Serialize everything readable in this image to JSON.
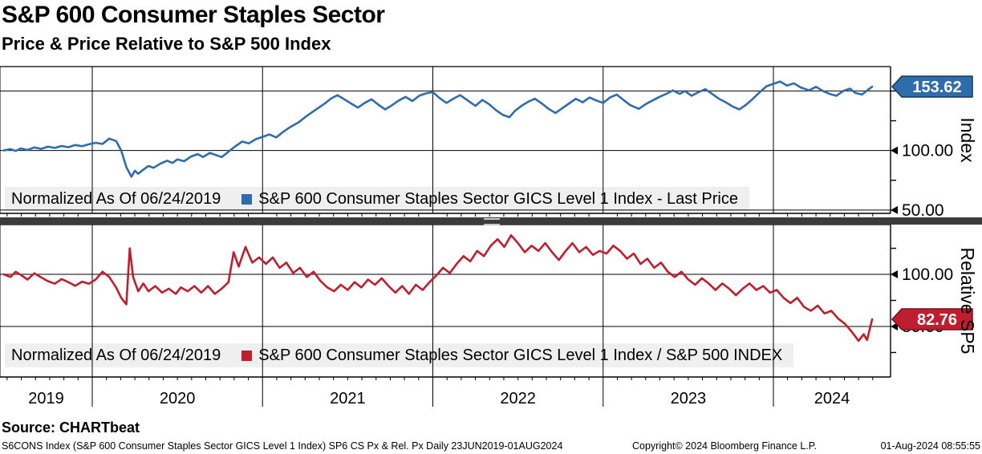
{
  "chart_data": {
    "type": "line",
    "title": "S&P 600 Consumer Staples Sector",
    "subtitle": "Price & Price Relative to S&P 500 Index",
    "normalized_note": "Normalized As Of 06/24/2019",
    "grid": true,
    "legend_position": "bottom-inside-each-panel",
    "x_axis": {
      "tick_labels": [
        "2019",
        "2020",
        "2021",
        "2022",
        "2023",
        "2024"
      ],
      "tick_years": [
        2019,
        2020,
        2021,
        2022,
        2023,
        2024
      ],
      "year_boundaries": [
        2020,
        2021,
        2022,
        2023,
        2024
      ],
      "range": [
        2019.475,
        2024.59
      ],
      "period": "Daily 23JUN2019-01AUG2024"
    },
    "panels": [
      {
        "id": "price",
        "axis_title": "Index",
        "legend_normalized": "Normalized As Of 06/24/2019",
        "legend_series": "S&P 600 Consumer Staples Sector GICS Level 1 Index - Last Price",
        "color": "#2e6cab",
        "tag_border": "#14395e",
        "last_value": 153.62,
        "last_value_label": "153.62",
        "ylim": [
          47.2,
          170.5
        ],
        "gridline_values": [
          150,
          100,
          50
        ],
        "axis_labels": [
          {
            "v": 100,
            "text": "100.00"
          },
          {
            "v": 50,
            "text": "50.00"
          }
        ],
        "minor_ticks": [
          150,
          125,
          75
        ],
        "series": [
          [
            2019.48,
            100
          ],
          [
            2019.52,
            101.2
          ],
          [
            2019.55,
            99.6
          ],
          [
            2019.58,
            101.8
          ],
          [
            2019.62,
            100.4
          ],
          [
            2019.66,
            102.6
          ],
          [
            2019.7,
            101.4
          ],
          [
            2019.74,
            103.2
          ],
          [
            2019.78,
            102.2
          ],
          [
            2019.82,
            103.8
          ],
          [
            2019.86,
            102.8
          ],
          [
            2019.9,
            104.6
          ],
          [
            2019.94,
            103.6
          ],
          [
            2019.98,
            105.2
          ],
          [
            2020.02,
            106.5
          ],
          [
            2020.06,
            105.5
          ],
          [
            2020.1,
            110
          ],
          [
            2020.14,
            108
          ],
          [
            2020.17,
            100
          ],
          [
            2020.2,
            86
          ],
          [
            2020.23,
            78
          ],
          [
            2020.25,
            83
          ],
          [
            2020.27,
            80.5
          ],
          [
            2020.3,
            84
          ],
          [
            2020.33,
            87
          ],
          [
            2020.36,
            85.5
          ],
          [
            2020.4,
            89
          ],
          [
            2020.44,
            91.5
          ],
          [
            2020.47,
            89.5
          ],
          [
            2020.5,
            92.5
          ],
          [
            2020.54,
            91
          ],
          [
            2020.58,
            95
          ],
          [
            2020.62,
            97
          ],
          [
            2020.65,
            94.5
          ],
          [
            2020.69,
            98
          ],
          [
            2020.72,
            96.5
          ],
          [
            2020.76,
            94.5
          ],
          [
            2020.8,
            99
          ],
          [
            2020.84,
            103.5
          ],
          [
            2020.88,
            107.5
          ],
          [
            2020.92,
            106
          ],
          [
            2020.96,
            109.5
          ],
          [
            2021.0,
            111.5
          ],
          [
            2021.04,
            113.5
          ],
          [
            2021.08,
            111
          ],
          [
            2021.12,
            115.5
          ],
          [
            2021.16,
            119.5
          ],
          [
            2021.21,
            123.5
          ],
          [
            2021.25,
            128
          ],
          [
            2021.29,
            132
          ],
          [
            2021.33,
            136
          ],
          [
            2021.37,
            140
          ],
          [
            2021.4,
            143.5
          ],
          [
            2021.44,
            146.5
          ],
          [
            2021.48,
            143
          ],
          [
            2021.52,
            139.5
          ],
          [
            2021.56,
            136
          ],
          [
            2021.6,
            140
          ],
          [
            2021.64,
            143
          ],
          [
            2021.68,
            138.5
          ],
          [
            2021.72,
            134.5
          ],
          [
            2021.76,
            138
          ],
          [
            2021.8,
            142
          ],
          [
            2021.84,
            145
          ],
          [
            2021.88,
            141.5
          ],
          [
            2021.92,
            146
          ],
          [
            2021.96,
            148
          ],
          [
            2022.0,
            149
          ],
          [
            2022.04,
            144
          ],
          [
            2022.08,
            140
          ],
          [
            2022.12,
            143.5
          ],
          [
            2022.16,
            146.5
          ],
          [
            2022.21,
            141.5
          ],
          [
            2022.25,
            137.5
          ],
          [
            2022.29,
            142.5
          ],
          [
            2022.33,
            139
          ],
          [
            2022.37,
            134
          ],
          [
            2022.41,
            130
          ],
          [
            2022.45,
            128
          ],
          [
            2022.48,
            133
          ],
          [
            2022.52,
            137.5
          ],
          [
            2022.56,
            141
          ],
          [
            2022.6,
            143.5
          ],
          [
            2022.64,
            139.5
          ],
          [
            2022.68,
            135
          ],
          [
            2022.72,
            131.5
          ],
          [
            2022.76,
            135.5
          ],
          [
            2022.8,
            139.5
          ],
          [
            2022.84,
            143.5
          ],
          [
            2022.88,
            140.5
          ],
          [
            2022.92,
            144.5
          ],
          [
            2022.96,
            142
          ],
          [
            2023.0,
            140
          ],
          [
            2023.04,
            144.5
          ],
          [
            2023.08,
            147
          ],
          [
            2023.12,
            142.5
          ],
          [
            2023.16,
            138
          ],
          [
            2023.21,
            135
          ],
          [
            2023.25,
            139
          ],
          [
            2023.29,
            142
          ],
          [
            2023.33,
            145
          ],
          [
            2023.37,
            147.5
          ],
          [
            2023.41,
            150.5
          ],
          [
            2023.45,
            147.5
          ],
          [
            2023.48,
            150
          ],
          [
            2023.52,
            146
          ],
          [
            2023.56,
            149
          ],
          [
            2023.6,
            151.5
          ],
          [
            2023.64,
            147.5
          ],
          [
            2023.68,
            143.5
          ],
          [
            2023.72,
            140.5
          ],
          [
            2023.76,
            137
          ],
          [
            2023.8,
            134.5
          ],
          [
            2023.84,
            138.5
          ],
          [
            2023.88,
            143.5
          ],
          [
            2023.92,
            149
          ],
          [
            2023.96,
            154
          ],
          [
            2024.0,
            156
          ],
          [
            2024.04,
            158
          ],
          [
            2024.08,
            154.5
          ],
          [
            2024.12,
            156.5
          ],
          [
            2024.16,
            153
          ],
          [
            2024.21,
            150.5
          ],
          [
            2024.25,
            153.5
          ],
          [
            2024.29,
            150
          ],
          [
            2024.33,
            147.5
          ],
          [
            2024.37,
            146
          ],
          [
            2024.41,
            150
          ],
          [
            2024.45,
            152
          ],
          [
            2024.48,
            148.5
          ],
          [
            2024.52,
            147
          ],
          [
            2024.56,
            151.5
          ],
          [
            2024.58,
            153.62
          ]
        ]
      },
      {
        "id": "relative",
        "axis_title": "Relative SP5",
        "legend_normalized": "Normalized As Of 06/24/2019",
        "legend_series": "S&P 600 Consumer Staples Sector GICS Level 1 Index / S&P 500 INDEX",
        "color": "#be1e2d",
        "tag_border": "#73121f",
        "last_value": 82.76,
        "last_value_label": "82.76",
        "ylim": [
          60.6,
          119.1
        ],
        "gridline_values": [
          100,
          80
        ],
        "axis_labels": [
          {
            "v": 100,
            "text": "100.00"
          },
          {
            "v": 80,
            "text": "80.00"
          }
        ],
        "minor_ticks": [
          110,
          90,
          70
        ],
        "series": [
          [
            2019.48,
            100
          ],
          [
            2019.52,
            99
          ],
          [
            2019.55,
            101
          ],
          [
            2019.58,
            99.8
          ],
          [
            2019.62,
            98
          ],
          [
            2019.66,
            100.4
          ],
          [
            2019.7,
            98.8
          ],
          [
            2019.74,
            97.4
          ],
          [
            2019.78,
            96.4
          ],
          [
            2019.82,
            98.2
          ],
          [
            2019.86,
            97
          ],
          [
            2019.9,
            95.6
          ],
          [
            2019.94,
            97.2
          ],
          [
            2019.98,
            96.4
          ],
          [
            2020.02,
            98
          ],
          [
            2020.06,
            101
          ],
          [
            2020.1,
            99
          ],
          [
            2020.14,
            95
          ],
          [
            2020.17,
            91
          ],
          [
            2020.2,
            88.5
          ],
          [
            2020.22,
            110
          ],
          [
            2020.24,
            99
          ],
          [
            2020.27,
            93.5
          ],
          [
            2020.3,
            96.5
          ],
          [
            2020.33,
            93.5
          ],
          [
            2020.37,
            95.5
          ],
          [
            2020.41,
            93
          ],
          [
            2020.45,
            94.5
          ],
          [
            2020.49,
            92.5
          ],
          [
            2020.52,
            95
          ],
          [
            2020.56,
            93.5
          ],
          [
            2020.6,
            95.5
          ],
          [
            2020.64,
            93
          ],
          [
            2020.68,
            95.5
          ],
          [
            2020.72,
            92.5
          ],
          [
            2020.76,
            94.5
          ],
          [
            2020.8,
            97
          ],
          [
            2020.83,
            108.5
          ],
          [
            2020.86,
            103
          ],
          [
            2020.9,
            110.5
          ],
          [
            2020.94,
            104.5
          ],
          [
            2020.98,
            106.5
          ],
          [
            2021.02,
            104
          ],
          [
            2021.06,
            106.5
          ],
          [
            2021.1,
            102.5
          ],
          [
            2021.14,
            104.5
          ],
          [
            2021.18,
            100.5
          ],
          [
            2021.22,
            102.5
          ],
          [
            2021.26,
            99
          ],
          [
            2021.3,
            101
          ],
          [
            2021.34,
            97.5
          ],
          [
            2021.38,
            95
          ],
          [
            2021.42,
            93.5
          ],
          [
            2021.46,
            96
          ],
          [
            2021.5,
            94
          ],
          [
            2021.54,
            97
          ],
          [
            2021.58,
            95
          ],
          [
            2021.62,
            98
          ],
          [
            2021.66,
            96
          ],
          [
            2021.7,
            98.5
          ],
          [
            2021.74,
            95.5
          ],
          [
            2021.78,
            93
          ],
          [
            2021.82,
            95.5
          ],
          [
            2021.86,
            92.5
          ],
          [
            2021.9,
            96
          ],
          [
            2021.94,
            94
          ],
          [
            2021.98,
            97
          ],
          [
            2022.02,
            99.5
          ],
          [
            2022.06,
            102.5
          ],
          [
            2022.1,
            100.5
          ],
          [
            2022.14,
            104
          ],
          [
            2022.18,
            107
          ],
          [
            2022.22,
            105
          ],
          [
            2022.26,
            109
          ],
          [
            2022.3,
            107
          ],
          [
            2022.34,
            111
          ],
          [
            2022.38,
            113.5
          ],
          [
            2022.42,
            110.5
          ],
          [
            2022.46,
            115
          ],
          [
            2022.5,
            112
          ],
          [
            2022.54,
            108.5
          ],
          [
            2022.58,
            111
          ],
          [
            2022.62,
            109
          ],
          [
            2022.66,
            112
          ],
          [
            2022.7,
            108.5
          ],
          [
            2022.74,
            105.5
          ],
          [
            2022.78,
            109
          ],
          [
            2022.82,
            112
          ],
          [
            2022.86,
            108.5
          ],
          [
            2022.9,
            110.5
          ],
          [
            2022.94,
            107.5
          ],
          [
            2022.98,
            109
          ],
          [
            2023.02,
            108
          ],
          [
            2023.06,
            111
          ],
          [
            2023.1,
            109
          ],
          [
            2023.14,
            106
          ],
          [
            2023.18,
            108
          ],
          [
            2023.22,
            104
          ],
          [
            2023.26,
            106
          ],
          [
            2023.3,
            102.5
          ],
          [
            2023.34,
            104.5
          ],
          [
            2023.38,
            101
          ],
          [
            2023.42,
            99
          ],
          [
            2023.46,
            101
          ],
          [
            2023.5,
            98
          ],
          [
            2023.54,
            96
          ],
          [
            2023.58,
            98.5
          ],
          [
            2023.62,
            96.5
          ],
          [
            2023.66,
            94
          ],
          [
            2023.7,
            96.5
          ],
          [
            2023.74,
            94.5
          ],
          [
            2023.78,
            92
          ],
          [
            2023.82,
            94.5
          ],
          [
            2023.86,
            96.5
          ],
          [
            2023.9,
            94
          ],
          [
            2023.94,
            95.5
          ],
          [
            2023.98,
            93
          ],
          [
            2024.02,
            94
          ],
          [
            2024.06,
            91
          ],
          [
            2024.1,
            89
          ],
          [
            2024.14,
            91
          ],
          [
            2024.18,
            87.5
          ],
          [
            2024.22,
            86
          ],
          [
            2024.26,
            88
          ],
          [
            2024.3,
            85
          ],
          [
            2024.34,
            86
          ],
          [
            2024.38,
            83
          ],
          [
            2024.42,
            81
          ],
          [
            2024.46,
            78
          ],
          [
            2024.5,
            74.5
          ],
          [
            2024.53,
            77
          ],
          [
            2024.55,
            74.8
          ],
          [
            2024.58,
            82.76
          ]
        ]
      }
    ],
    "colors": {
      "price_line": "#2e6cab",
      "relative_line": "#be1e2d",
      "legend_bg": "#efefef",
      "divider": "#3b3b3b",
      "grid": "#000000"
    }
  },
  "footer": {
    "source": "Source: CHARTbeat",
    "description": "S6CONS Index (S&P 600 Consumer Staples Sector GICS Level 1 Index) SP6 CS Px & Rel. Px  Daily 23JUN2019-01AUG2024",
    "copyright": "Copyright© 2024 Bloomberg Finance L.P.",
    "timestamp": "01-Aug-2024 08:55:55"
  }
}
